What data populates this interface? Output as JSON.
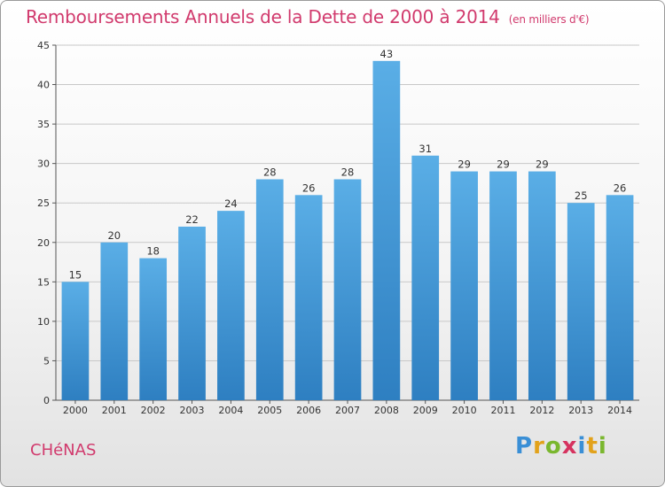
{
  "chart_data": {
    "type": "bar",
    "title": "Remboursements Annuels de la Dette de 2000 à 2014",
    "unit_label": "(en milliers d'€)",
    "categories": [
      "2000",
      "2001",
      "2002",
      "2003",
      "2004",
      "2005",
      "2006",
      "2007",
      "2008",
      "2009",
      "2010",
      "2011",
      "2012",
      "2013",
      "2014"
    ],
    "values": [
      15,
      20,
      18,
      22,
      24,
      28,
      26,
      28,
      43,
      31,
      29,
      29,
      29,
      25,
      26
    ],
    "xlabel": "",
    "ylabel": "",
    "ylim": [
      0,
      45
    ],
    "yticks": [
      0,
      5,
      10,
      15,
      20,
      25,
      30,
      35,
      40,
      45
    ],
    "grid": true,
    "bar_color_top": "#5aaee6",
    "bar_color_bottom": "#2e7fc1",
    "grid_color": "#c8c8c8"
  },
  "footer": {
    "city": "CHéNAS",
    "brand_letters": [
      {
        "ch": "P",
        "color": "#3a8fd6"
      },
      {
        "ch": "r",
        "color": "#e2a21b"
      },
      {
        "ch": "o",
        "color": "#7ab72e"
      },
      {
        "ch": "x",
        "color": "#d6335f"
      },
      {
        "ch": "i",
        "color": "#3a8fd6"
      },
      {
        "ch": "t",
        "color": "#e2a21b"
      },
      {
        "ch": "i",
        "color": "#7ab72e"
      }
    ]
  },
  "colors": {
    "title": "#d13a6d",
    "accent": "#d13a6d"
  }
}
